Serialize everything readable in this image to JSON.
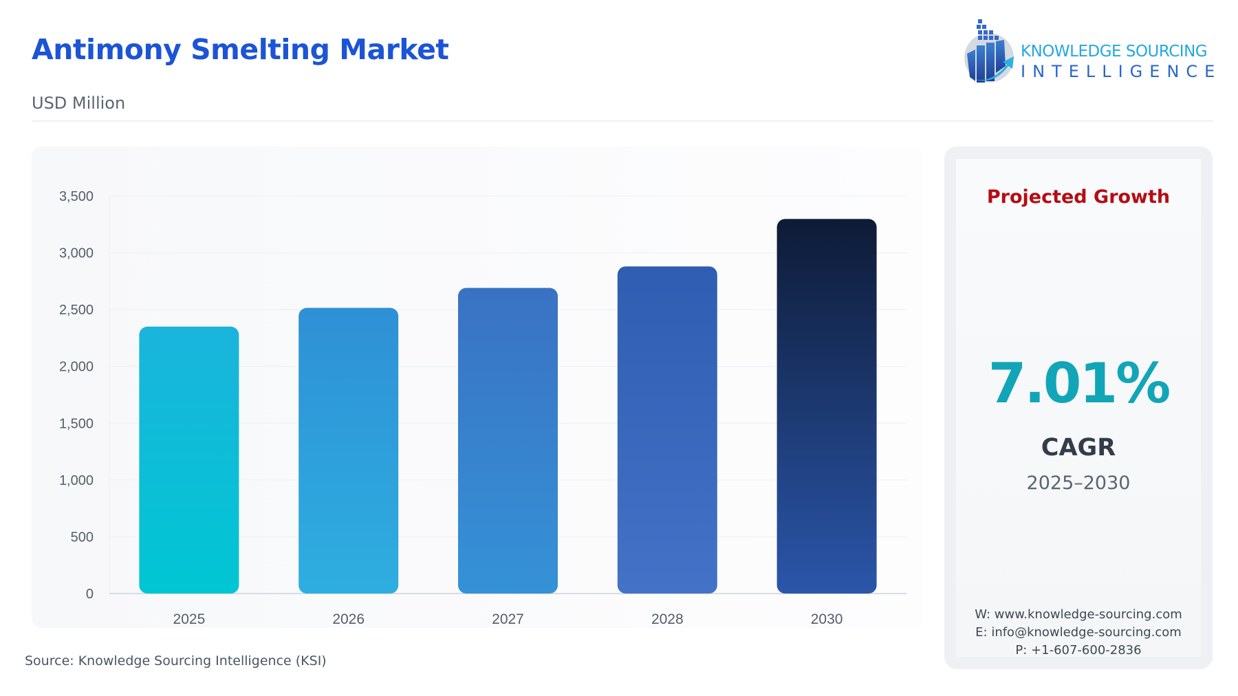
{
  "header": {
    "title": "Antimony Smelting Market",
    "unit": "USD Million",
    "logo_text_line1": "KNOWLEDGE SOURCING",
    "logo_text_line2": "INTELLIGENCE"
  },
  "chart_data": {
    "type": "bar",
    "title": "Antimony Smelting Market",
    "ylabel": "USD Million",
    "categories": [
      "2025",
      "2026",
      "2027",
      "2028",
      "2030"
    ],
    "values": [
      2350,
      2515,
      2691,
      2880,
      3298
    ],
    "ylim": [
      0,
      3500
    ],
    "yticks": [
      0,
      500,
      1000,
      1500,
      2000,
      2500,
      3000,
      3500
    ],
    "ytick_labels": [
      "0",
      "500",
      "1,000",
      "1,500",
      "2,000",
      "2,500",
      "3,000",
      "3,500"
    ],
    "grid": true,
    "bar_colors": [
      [
        "#1bb4dc",
        "#00c6d3"
      ],
      [
        "#2f90d5",
        "#2eaee0"
      ],
      [
        "#3a72c3",
        "#3592d7"
      ],
      [
        "#2f5db2",
        "#4472c7"
      ],
      [
        "#0e1b36",
        "#2b56aa"
      ]
    ]
  },
  "side": {
    "heading": "Projected Growth",
    "cagr_value": "7.01%",
    "cagr_label": "CAGR",
    "cagr_range": "2025–2030",
    "website": "W: www.knowledge-sourcing.com",
    "email": "E: info@knowledge-sourcing.com",
    "phone": "P: +1-607-600-2836"
  },
  "footer": {
    "source": "Source: Knowledge Sourcing Intelligence (KSI)"
  },
  "colors": {
    "title": "#1c54d6",
    "heading": "#b50d14",
    "cagr": "#12a5b8"
  }
}
